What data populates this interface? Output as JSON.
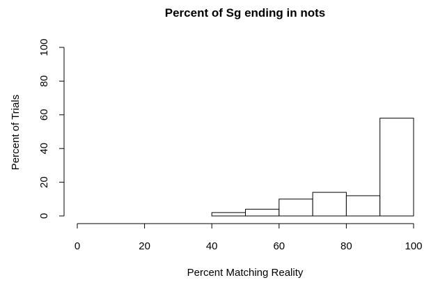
{
  "chart_data": {
    "type": "bar",
    "title": "Percent of Sg ending in nots",
    "xlabel": "Percent Matching Reality",
    "ylabel": "Percent of Trials",
    "xlim": [
      0,
      100
    ],
    "ylim": [
      0,
      100
    ],
    "x_ticks": [
      0,
      20,
      40,
      60,
      80,
      100
    ],
    "y_ticks": [
      0,
      20,
      40,
      60,
      80,
      100
    ],
    "bins": [
      {
        "start": 40,
        "end": 50,
        "value": 2
      },
      {
        "start": 50,
        "end": 60,
        "value": 4
      },
      {
        "start": 60,
        "end": 70,
        "value": 10
      },
      {
        "start": 70,
        "end": 80,
        "value": 14
      },
      {
        "start": 80,
        "end": 90,
        "value": 12
      },
      {
        "start": 90,
        "end": 100,
        "value": 58
      }
    ],
    "grid": false,
    "legend": "none"
  }
}
